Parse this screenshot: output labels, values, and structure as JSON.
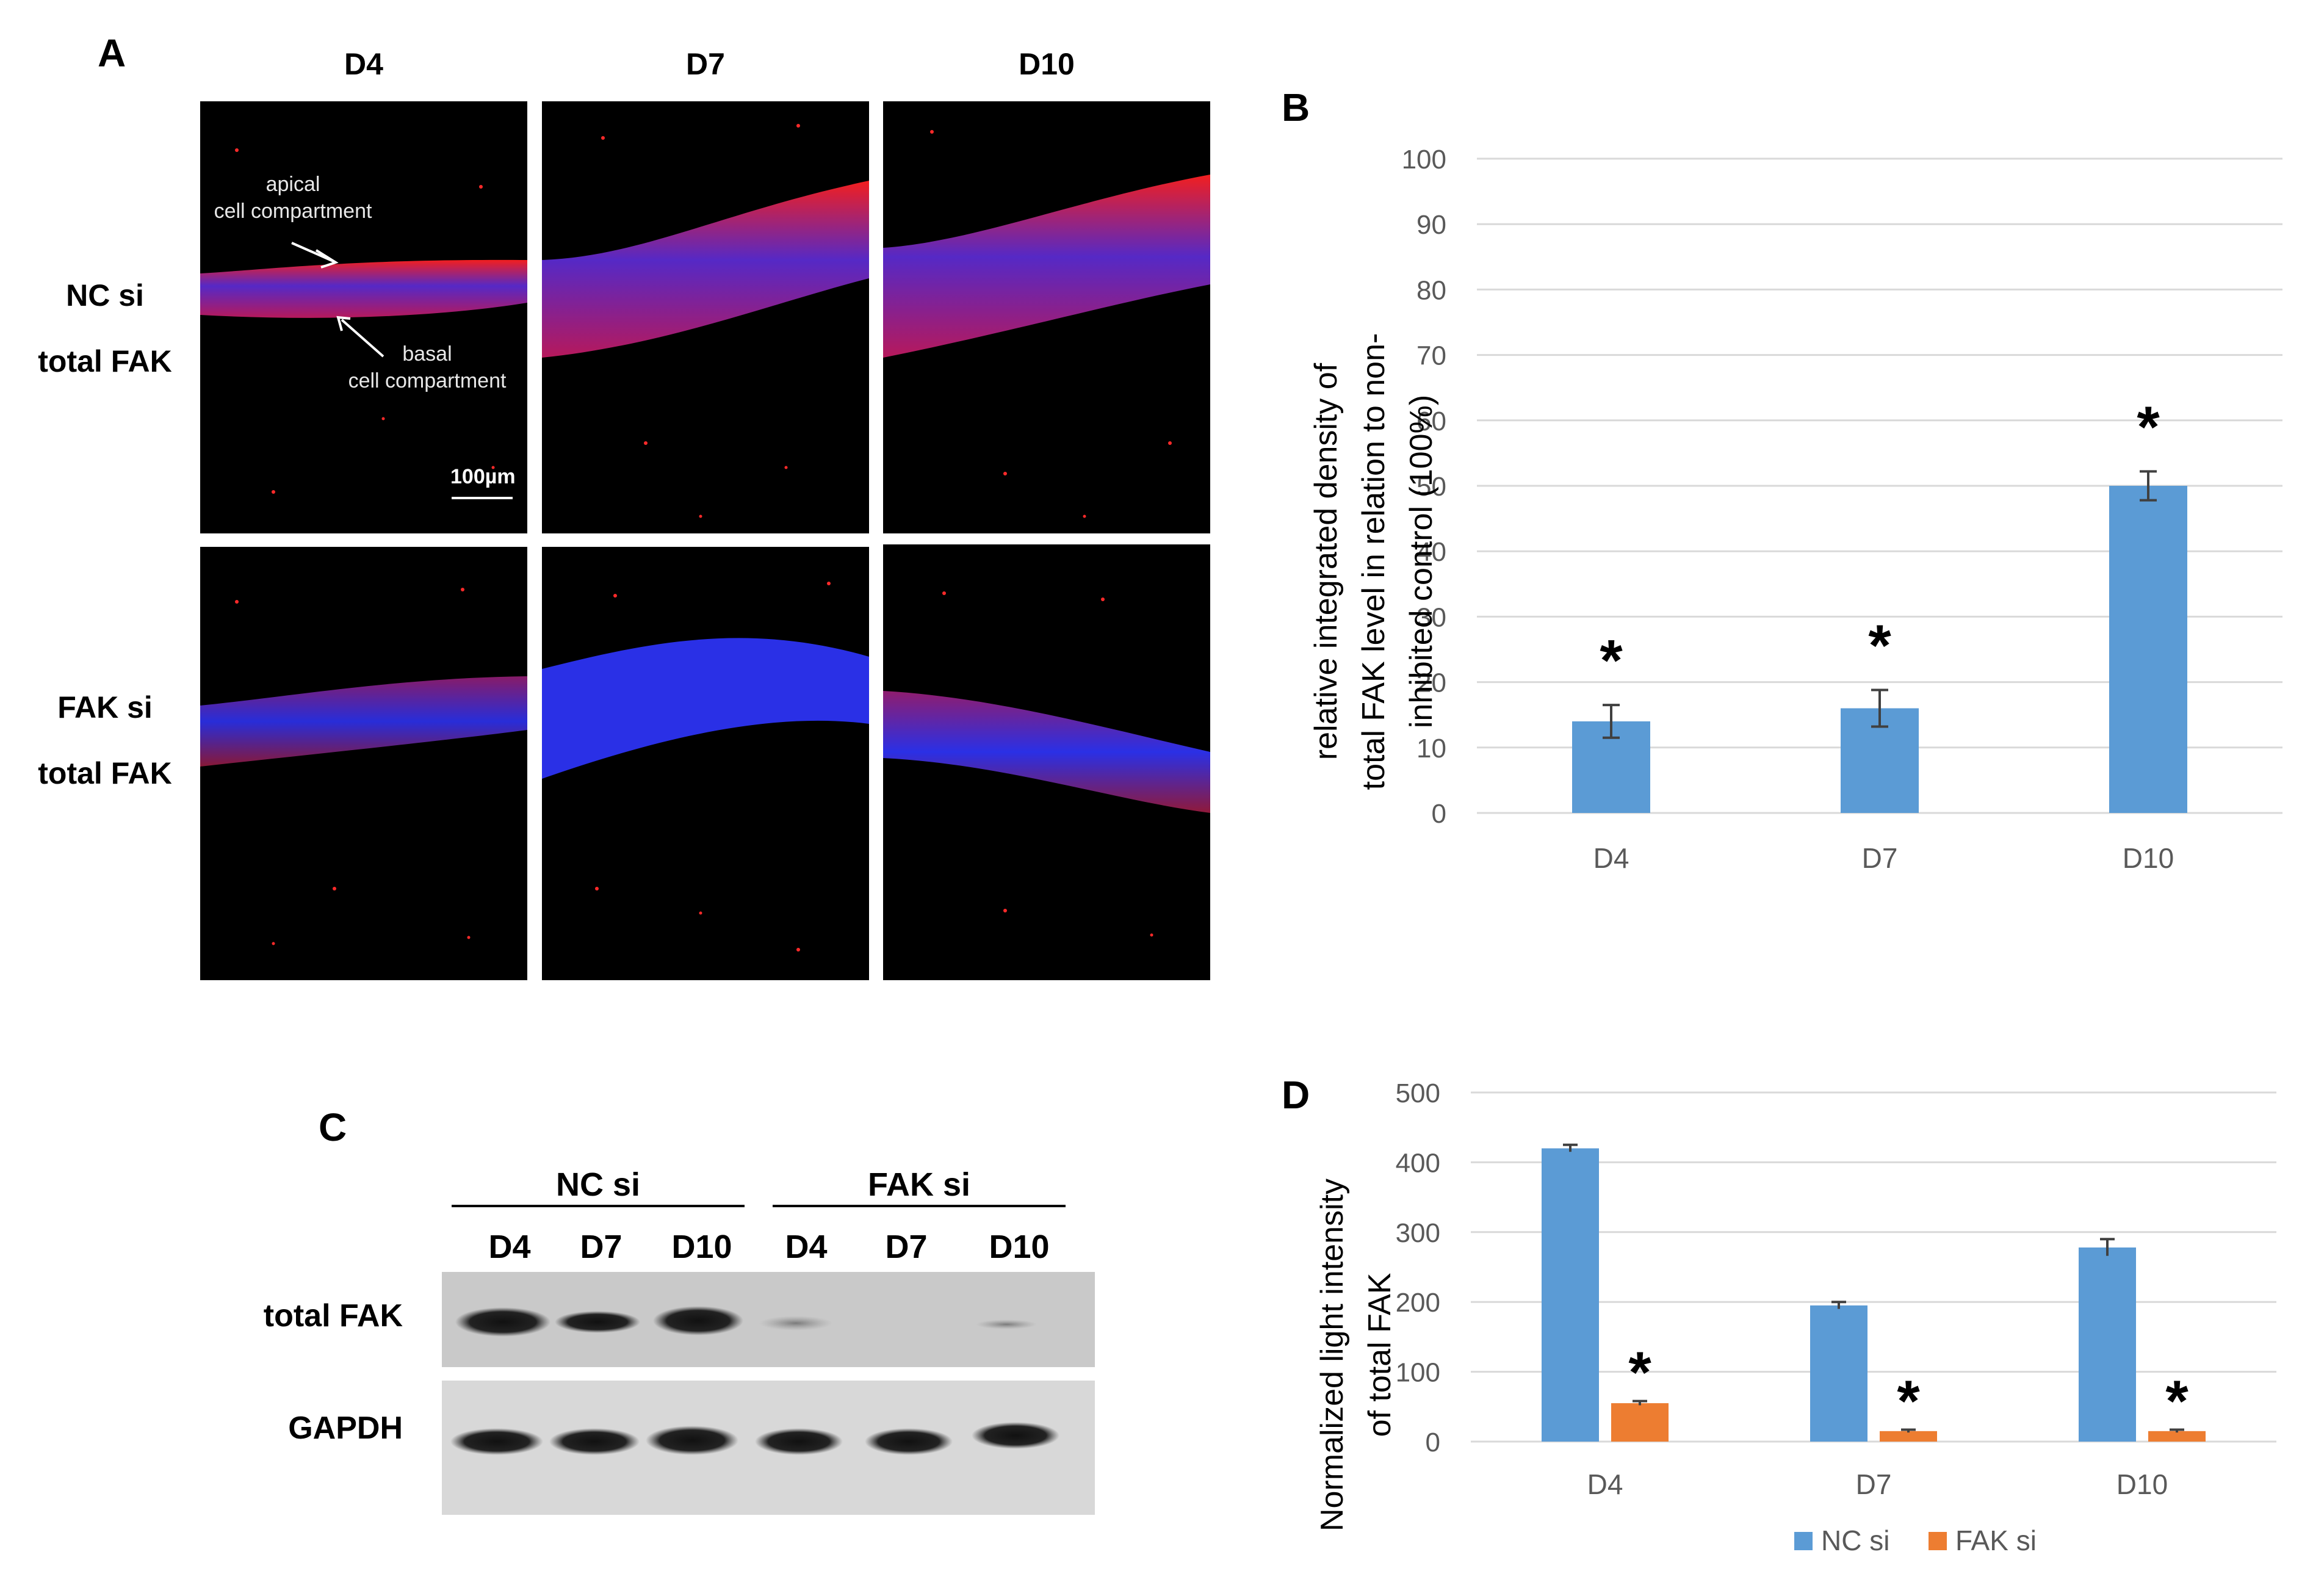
{
  "panelA": {
    "letter": "A",
    "columns": [
      "D4",
      "D7",
      "D10"
    ],
    "rows": [
      {
        "line1": "NC si",
        "line2": "total FAK"
      },
      {
        "line1": "FAK si",
        "line2": "total FAK"
      }
    ],
    "annotations": {
      "apical_line1": "apical",
      "apical_line2": "cell compartment",
      "basal_line1": "basal",
      "basal_line2": "cell compartment",
      "scale_bar": "100µm"
    },
    "colors": {
      "nucleus": "#2b2bff",
      "fak": "#ff1a1a",
      "background": "#000000"
    }
  },
  "panelC": {
    "letter": "C",
    "groups": [
      "NC si",
      "FAK si"
    ],
    "lanes": [
      "D4",
      "D7",
      "D10",
      "D4",
      "D7",
      "D10"
    ],
    "bands": [
      "total FAK",
      "GAPDH"
    ]
  },
  "chart_data": [
    {
      "panel": "B",
      "type": "bar",
      "categories": [
        "D4",
        "D7",
        "D10"
      ],
      "values": [
        14,
        16,
        50
      ],
      "errors": [
        2.5,
        2.8,
        2.2
      ],
      "significance": [
        "*",
        "*",
        "*"
      ],
      "title": "",
      "xlabel": "",
      "ylabel_line1": "relative integrated density of",
      "ylabel_line2": "total FAK level in relation to non-",
      "ylabel_line3": "inhibited control (100%)",
      "ylim": [
        0,
        100
      ],
      "yticks": [
        0,
        10,
        20,
        30,
        40,
        50,
        60,
        70,
        80,
        90,
        100
      ],
      "grid": true,
      "color": "#5b9bd5"
    },
    {
      "panel": "D",
      "type": "bar",
      "categories": [
        "D4",
        "D7",
        "D10"
      ],
      "series": [
        {
          "name": "NC si",
          "values": [
            420,
            195,
            278
          ],
          "errors": [
            5,
            5,
            12
          ],
          "color": "#5b9bd5"
        },
        {
          "name": "FAK si",
          "values": [
            55,
            15,
            15
          ],
          "errors": [
            3,
            2,
            2
          ],
          "color": "#ed7d31",
          "significance": [
            "*",
            "*",
            "*"
          ]
        }
      ],
      "title": "",
      "xlabel": "",
      "ylabel_line1": "Normalized light intensity",
      "ylabel_line2": "of total FAK",
      "ylim": [
        0,
        500
      ],
      "yticks": [
        0,
        100,
        200,
        300,
        400,
        500
      ],
      "grid": true,
      "legend": "bottom"
    }
  ]
}
